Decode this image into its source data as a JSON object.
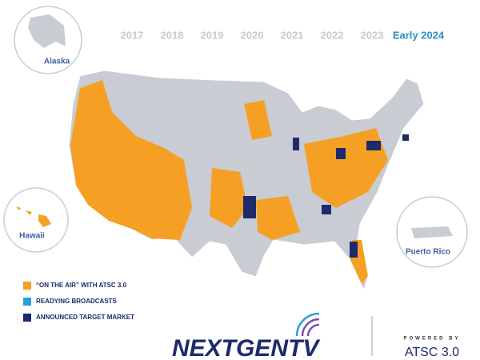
{
  "timeline": {
    "years": [
      "2017",
      "2018",
      "2019",
      "2020",
      "2021",
      "2022",
      "2023"
    ],
    "current": "Early 2024"
  },
  "insets": [
    "Alaska",
    "Hawaii",
    "Puerto Rico"
  ],
  "legend": [
    {
      "label": "“ON THE AIR” WITH ATSC 3.0",
      "color": "#f5a024"
    },
    {
      "label": "READYING BROADCASTS",
      "color": "#2a9fd6"
    },
    {
      "label": "ANNOUNCED TARGET MARKET",
      "color": "#1d2a6b"
    }
  ],
  "logo": {
    "brand": "NEXTGENTV",
    "powered_by": "POWERED BY",
    "standard": "ATSC 3.0"
  }
}
